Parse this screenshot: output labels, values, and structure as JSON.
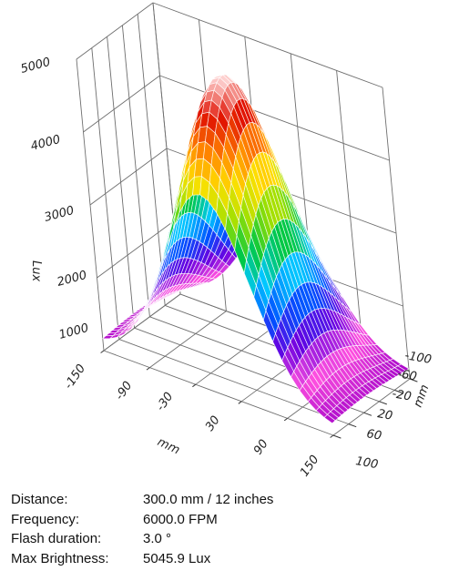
{
  "chart_data": {
    "type": "surface",
    "title": "",
    "zlabel": "Lux",
    "xlabel": "mm",
    "ylabel": "mm",
    "z_ticks": [
      "1000",
      "2000",
      "3000",
      "4000",
      "5000"
    ],
    "x_ticks": [
      "-150",
      "-90",
      "-30",
      "30",
      "90",
      "150"
    ],
    "y_ticks": [
      "-100",
      "-60",
      "-20",
      "20",
      "60",
      "100"
    ],
    "xlim": [
      -150,
      150
    ],
    "ylim": [
      -100,
      100
    ],
    "zlim": [
      1000,
      5000
    ],
    "peak": {
      "x": 0,
      "y": -20,
      "z": 5045.9
    },
    "edge_min_lux": 1100,
    "grid": true,
    "colorscale": [
      "#a000c8",
      "#ff50e0",
      "#6a00e0",
      "#0050ff",
      "#00c8ff",
      "#00c840",
      "#a0e000",
      "#ffe000",
      "#ff8000",
      "#e01000",
      "#ffd8d8"
    ]
  },
  "info": [
    {
      "label": "Distance:",
      "value": "300.0 mm / 12 inches"
    },
    {
      "label": "Frequency:",
      "value": "6000.0 FPM"
    },
    {
      "label": "Flash duration:",
      "value": "3.0 °"
    },
    {
      "label": "Max Brightness:",
      "value": "5045.9 Lux"
    }
  ]
}
